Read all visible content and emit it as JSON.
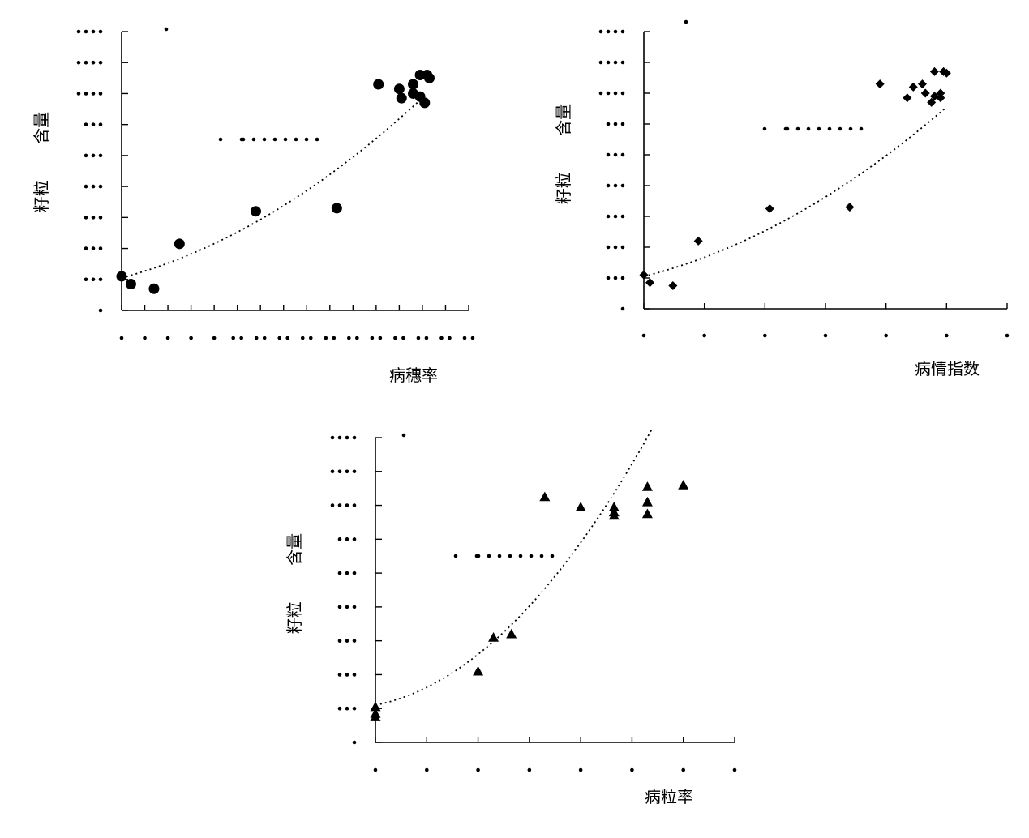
{
  "chart_data": [
    {
      "type": "scatter",
      "marker": "circle",
      "xlabel": "病穗率",
      "ylabel": "籽粒",
      "ylabel_suffix": "含量",
      "xlim": [
        0,
        15
      ],
      "ylim": [
        0,
        9
      ],
      "y_ticks": 9,
      "x_ticks": 15,
      "points": [
        {
          "x": 0.0,
          "y": 1.1
        },
        {
          "x": 0.4,
          "y": 0.85
        },
        {
          "x": 1.4,
          "y": 0.7
        },
        {
          "x": 2.5,
          "y": 2.15
        },
        {
          "x": 5.8,
          "y": 3.2
        },
        {
          "x": 9.3,
          "y": 3.3
        },
        {
          "x": 11.1,
          "y": 7.3
        },
        {
          "x": 12.0,
          "y": 7.15
        },
        {
          "x": 12.6,
          "y": 7.3
        },
        {
          "x": 12.1,
          "y": 6.85
        },
        {
          "x": 12.6,
          "y": 7.0
        },
        {
          "x": 12.9,
          "y": 6.9
        },
        {
          "x": 12.9,
          "y": 7.6
        },
        {
          "x": 13.2,
          "y": 7.6
        },
        {
          "x": 13.3,
          "y": 7.5
        },
        {
          "x": 13.1,
          "y": 6.7
        }
      ],
      "trend": {
        "from": 0,
        "to": 13.0,
        "c": [
          1.05,
          0.2,
          0.019
        ]
      }
    },
    {
      "type": "scatter",
      "marker": "diamond",
      "xlabel": "病情指数",
      "ylabel": "籽粒",
      "ylabel_suffix": "含量",
      "xlim": [
        0,
        6
      ],
      "ylim": [
        0,
        9
      ],
      "y_ticks": 9,
      "x_ticks": 6,
      "points": [
        {
          "x": 0.0,
          "y": 1.1
        },
        {
          "x": 0.1,
          "y": 0.85
        },
        {
          "x": 0.48,
          "y": 0.75
        },
        {
          "x": 0.9,
          "y": 2.2
        },
        {
          "x": 2.08,
          "y": 3.25
        },
        {
          "x": 3.4,
          "y": 3.3
        },
        {
          "x": 3.9,
          "y": 7.3
        },
        {
          "x": 4.35,
          "y": 6.85
        },
        {
          "x": 4.45,
          "y": 7.2
        },
        {
          "x": 4.6,
          "y": 7.3
        },
        {
          "x": 4.65,
          "y": 7.0
        },
        {
          "x": 4.75,
          "y": 6.7
        },
        {
          "x": 4.8,
          "y": 6.9
        },
        {
          "x": 4.8,
          "y": 7.7
        },
        {
          "x": 4.9,
          "y": 6.85
        },
        {
          "x": 4.9,
          "y": 7.0
        },
        {
          "x": 4.95,
          "y": 7.7
        },
        {
          "x": 5.0,
          "y": 7.65
        }
      ],
      "trend": {
        "from": 0,
        "to": 5.0,
        "c": [
          1.05,
          0.5,
          0.12
        ]
      }
    },
    {
      "type": "scatter",
      "marker": "triangle",
      "xlabel": "病粒率",
      "ylabel": "籽粒",
      "ylabel_suffix": "含量",
      "xlim": [
        0,
        7
      ],
      "ylim": [
        0,
        9
      ],
      "y_ticks": 9,
      "x_ticks": 7,
      "points": [
        {
          "x": 0.0,
          "y": 1.05
        },
        {
          "x": 0.0,
          "y": 0.85
        },
        {
          "x": 0.0,
          "y": 0.75
        },
        {
          "x": 2.0,
          "y": 2.1
        },
        {
          "x": 2.3,
          "y": 3.1
        },
        {
          "x": 2.65,
          "y": 3.2
        },
        {
          "x": 3.3,
          "y": 7.25
        },
        {
          "x": 4.0,
          "y": 6.95
        },
        {
          "x": 4.65,
          "y": 6.95
        },
        {
          "x": 4.65,
          "y": 6.8
        },
        {
          "x": 4.65,
          "y": 6.7
        },
        {
          "x": 5.3,
          "y": 7.55
        },
        {
          "x": 5.3,
          "y": 7.1
        },
        {
          "x": 5.3,
          "y": 6.75
        },
        {
          "x": 6.0,
          "y": 7.6
        }
      ],
      "trend": {
        "from": 0,
        "to": 5.4,
        "c": [
          1.1,
          0.3,
          0.225
        ]
      }
    }
  ]
}
